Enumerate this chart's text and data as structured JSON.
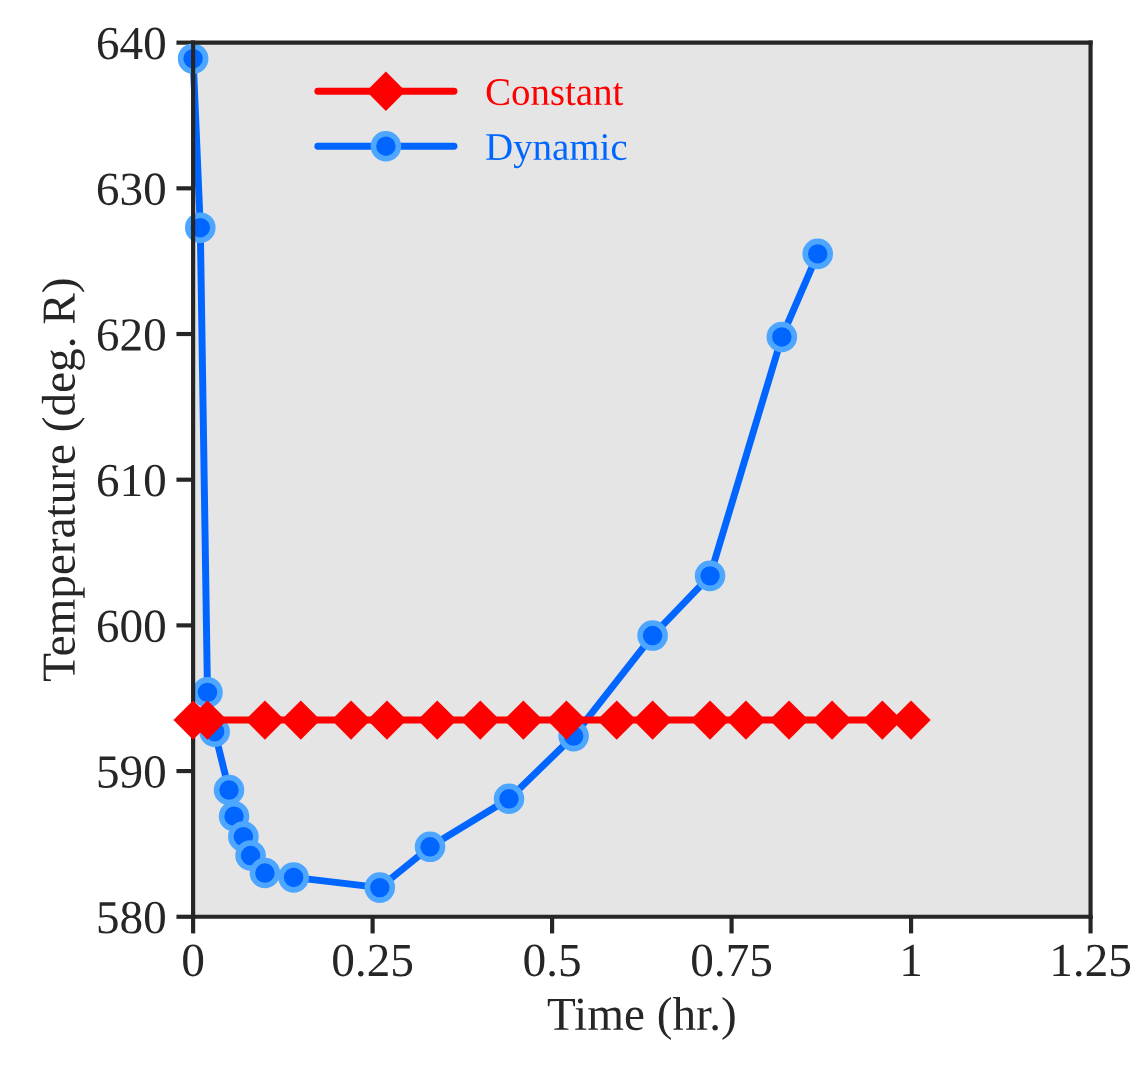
{
  "chart_data": {
    "type": "line",
    "xlabel": "Time (hr.)",
    "ylabel": "Temperature (deg. R)",
    "xlim": [
      0,
      1.25
    ],
    "xticks": [
      0,
      0.25,
      0.5,
      0.75,
      1,
      1.25
    ],
    "ylim": [
      580,
      640
    ],
    "yticks": [
      580,
      590,
      600,
      610,
      620,
      630,
      640
    ],
    "grid": false,
    "legend": "top left",
    "series": [
      {
        "name": "Constant",
        "color": "#ff0000",
        "marker": "diamond",
        "x": [
          0,
          0.02,
          0.1,
          0.15,
          0.22,
          0.27,
          0.34,
          0.4,
          0.46,
          0.52,
          0.59,
          0.64,
          0.72,
          0.77,
          0.83,
          0.89,
          0.96,
          1.0
        ],
        "values": [
          593.5,
          593.5,
          593.5,
          593.5,
          593.5,
          593.5,
          593.5,
          593.5,
          593.5,
          593.5,
          593.5,
          593.5,
          593.5,
          593.5,
          593.5,
          593.5,
          593.5,
          593.5
        ]
      },
      {
        "name": "Dynamic",
        "color": "#0066ff",
        "marker": "circle",
        "x": [
          0,
          0.01,
          0.02,
          0.03,
          0.05,
          0.057,
          0.07,
          0.08,
          0.1,
          0.14,
          0.26,
          0.33,
          0.44,
          0.53,
          0.64,
          0.72,
          0.82,
          0.87
        ],
        "values": [
          638.9,
          627.3,
          595.4,
          592.7,
          588.7,
          586.9,
          585.5,
          584.2,
          583.0,
          582.7,
          582.0,
          584.8,
          588.1,
          592.4,
          599.3,
          603.4,
          619.8,
          625.5
        ]
      }
    ]
  }
}
